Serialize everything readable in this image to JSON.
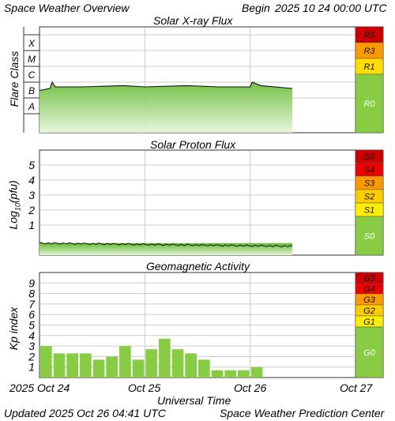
{
  "header": {
    "title": "Space Weather Overview",
    "begin_label": "Begin",
    "begin_value": "2025 10 24 00:00 UTC"
  },
  "footer": {
    "updated_label": "Updated",
    "updated_value": "2025 Oct 26 04:41 UTC",
    "credit": "Space Weather Prediction Center",
    "xlabel": "Universal Time"
  },
  "x_ticks": [
    "2025 Oct 24",
    "Oct 25",
    "Oct 26",
    "Oct 27"
  ],
  "chart_data": [
    {
      "type": "area",
      "title": "Solar X-ray Flux",
      "ylabel": "Flare Class",
      "y_scale": "log",
      "class_labels": [
        "X",
        "M",
        "C",
        "B",
        "A"
      ],
      "x_range_days": [
        0,
        3
      ],
      "x_unit": "days since 2025 Oct 24 00:00 UTC",
      "series": [
        {
          "values_approx_class": [
            [
              0.0,
              "B3"
            ],
            [
              0.1,
              "B4"
            ],
            [
              0.12,
              "C1"
            ],
            [
              0.15,
              "B5"
            ],
            [
              0.4,
              "B5"
            ],
            [
              0.8,
              "B6"
            ],
            [
              1.0,
              "B5"
            ],
            [
              1.4,
              "B6"
            ],
            [
              1.7,
              "B5"
            ],
            [
              2.0,
              "B5"
            ],
            [
              2.02,
              "C1"
            ],
            [
              2.1,
              "B6"
            ],
            [
              2.4,
              "B4"
            ]
          ]
        }
      ],
      "scale": [
        "R5",
        "R3",
        "R1",
        "R0"
      ],
      "scale_colors": [
        "#cc0000",
        "#ff9900",
        "#ffdd00",
        "#88cc44"
      ]
    },
    {
      "type": "area",
      "title": "Solar Proton Flux",
      "ylabel": "Log10(pfu)",
      "ylabel_main": "Log",
      "ylabel_sub": "10",
      "ylabel_rest": "(pfu)",
      "ylim": [
        -1,
        6
      ],
      "yticks": [
        "5",
        "4",
        "3",
        "2",
        "1"
      ],
      "x_range_days": [
        0,
        3
      ],
      "series": [
        {
          "level_log10_pfu": -0.2,
          "end_day": 2.4
        }
      ],
      "scale": [
        "S5",
        "S4",
        "S3",
        "S2",
        "S1",
        "S0"
      ],
      "scale_colors": [
        "#cc0000",
        "#ee0000",
        "#ff9900",
        "#ffcc00",
        "#ffee00",
        "#88cc44"
      ]
    },
    {
      "type": "bar",
      "title": "Geomagnetic Activity",
      "ylabel": "Kp index",
      "ylim": [
        0,
        10
      ],
      "yticks": [
        "9",
        "8",
        "7",
        "6",
        "5",
        "4",
        "3",
        "2",
        "1"
      ],
      "bar_interval_hours": 3,
      "values": [
        3,
        2.3,
        2.3,
        2.3,
        1.7,
        2,
        3,
        1.7,
        2.7,
        3.7,
        2.7,
        2.3,
        1.7,
        0.7,
        0.7,
        0.7,
        1
      ],
      "scale": [
        "G5",
        "G4",
        "G3",
        "G2",
        "G1",
        "G0"
      ],
      "scale_colors": [
        "#cc0000",
        "#ee0000",
        "#ff9900",
        "#ffcc00",
        "#ffee00",
        "#88cc44"
      ]
    }
  ],
  "colors": {
    "grid": "#cccccc",
    "fill_top": "#66bb33",
    "fill_bottom": "#e4f4d8",
    "bar": "#88cc44",
    "border": "#333333"
  }
}
